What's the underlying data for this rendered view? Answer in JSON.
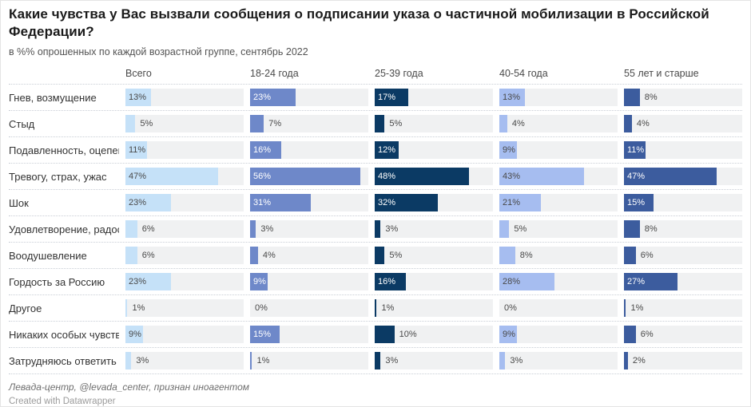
{
  "header": {
    "title": "Какие чувства у Вас вызвали сообщения о подписании указа о частичной мобилизации в Российской Федерации?",
    "subtitle": "в %% опрошенных по каждой возрастной группе, сентябрь 2022"
  },
  "chart_data": {
    "type": "bar",
    "orientation": "horizontal",
    "layout": "split-bar table, one bar column per age group, shared scale",
    "unit": "%",
    "x_axis": {
      "min": 0,
      "max": 60,
      "visible": false,
      "gridlines": false
    },
    "track_background": "#f0f1f2",
    "categories": [
      "Гнев, возмущение",
      "Стыд",
      "Подавленность, оцепенение",
      "Тревогу, страх, ужас",
      "Шок",
      "Удовлетворение, радость",
      "Воодушевление",
      "Гордость за Россию",
      "Другое",
      "Никаких особых чувств",
      "Затрудняюсь ответить"
    ],
    "series": [
      {
        "name": "Всего",
        "color": "#c5e1f8",
        "label_color_inside": "#494949",
        "values": [
          13,
          5,
          11,
          47,
          23,
          6,
          6,
          23,
          1,
          9,
          3
        ]
      },
      {
        "name": "18-24 года",
        "color": "#6e88c9",
        "label_color_inside": "#ffffff",
        "values": [
          23,
          7,
          16,
          56,
          31,
          3,
          4,
          9,
          0,
          15,
          1
        ]
      },
      {
        "name": "25-39 года",
        "color": "#0b3a64",
        "label_color_inside": "#ffffff",
        "values": [
          17,
          5,
          12,
          48,
          32,
          3,
          5,
          16,
          1,
          10,
          3
        ]
      },
      {
        "name": "40-54 года",
        "color": "#a6bdf0",
        "label_color_inside": "#494949",
        "values": [
          13,
          4,
          9,
          43,
          21,
          5,
          8,
          28,
          0,
          9,
          3
        ]
      },
      {
        "name": "55 лет и старше",
        "color": "#3c5c9e",
        "label_color_inside": "#ffffff",
        "values": [
          8,
          4,
          11,
          47,
          15,
          8,
          6,
          27,
          1,
          6,
          2
        ]
      }
    ]
  },
  "footer": {
    "source": "Левада-центр, @levada_center, признан иноагентом",
    "credit": "Created with Datawrapper"
  }
}
